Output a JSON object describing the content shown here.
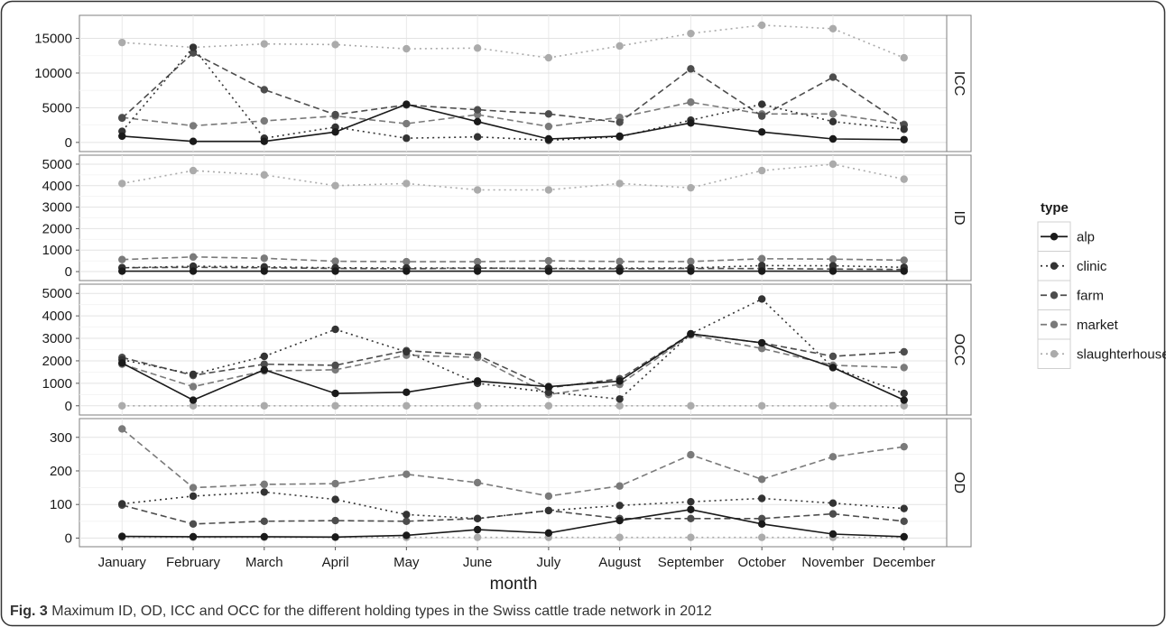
{
  "figure": {
    "caption_label": "Fig. 3",
    "caption_text": "Maximum ID, OD, ICC and OCC for the different holding types in the Swiss cattle trade network in 2012"
  },
  "chart_data": {
    "type": "line",
    "xlabel": "month",
    "x": [
      "January",
      "February",
      "March",
      "April",
      "May",
      "June",
      "July",
      "August",
      "September",
      "October",
      "November",
      "December"
    ],
    "legend": {
      "title": "type",
      "position": "right"
    },
    "grid": true,
    "series_styles": [
      {
        "name": "alp",
        "color": "#1a1a1a",
        "dash": "solid"
      },
      {
        "name": "clinic",
        "color": "#333333",
        "dash": "dotted"
      },
      {
        "name": "farm",
        "color": "#4d4d4d",
        "dash": "dashed"
      },
      {
        "name": "market",
        "color": "#7a7a7a",
        "dash": "dashed"
      },
      {
        "name": "slaughterhouse",
        "color": "#ababab",
        "dash": "dotted"
      }
    ],
    "panels": [
      {
        "label": "ICC",
        "ylim": [
          -800,
          17800
        ],
        "yticks": [
          0,
          5000,
          10000,
          15000
        ],
        "series": [
          {
            "name": "alp",
            "values": [
              900,
              150,
              150,
              1500,
              5500,
              3000,
              500,
              900,
              2800,
              1500,
              500,
              400
            ]
          },
          {
            "name": "clinic",
            "values": [
              1600,
              13700,
              600,
              2200,
              600,
              800,
              300,
              800,
              3200,
              5500,
              3000,
              1900
            ]
          },
          {
            "name": "farm",
            "values": [
              3500,
              12900,
              7600,
              4000,
              5400,
              4700,
              4100,
              2900,
              10600,
              3800,
              9400,
              2500
            ]
          },
          {
            "name": "market",
            "values": [
              3600,
              2400,
              3100,
              3800,
              2700,
              4000,
              2300,
              3600,
              5800,
              4100,
              4100,
              2600
            ]
          },
          {
            "name": "slaughterhouse",
            "values": [
              14400,
              13700,
              14200,
              14100,
              13500,
              13600,
              12200,
              13900,
              15700,
              16900,
              16400,
              12200
            ]
          }
        ]
      },
      {
        "label": "ID",
        "ylim": [
          -250,
          5250
        ],
        "yticks": [
          0,
          1000,
          2000,
          3000,
          4000,
          5000
        ],
        "series": [
          {
            "name": "alp",
            "values": [
              20,
              20,
              20,
              20,
              20,
              20,
              20,
              20,
              20,
              20,
              20,
              20
            ]
          },
          {
            "name": "clinic",
            "values": [
              180,
              250,
              220,
              180,
              170,
              170,
              150,
              160,
              170,
              280,
              270,
              200
            ]
          },
          {
            "name": "farm",
            "values": [
              180,
              200,
              180,
              150,
              130,
              160,
              140,
              130,
              150,
              140,
              120,
              100
            ]
          },
          {
            "name": "market",
            "values": [
              560,
              680,
              620,
              480,
              460,
              460,
              500,
              470,
              470,
              600,
              580,
              530
            ]
          },
          {
            "name": "slaughterhouse",
            "values": [
              4100,
              4700,
              4500,
              4000,
              4100,
              3800,
              3800,
              4100,
              3900,
              4700,
              5000,
              4300
            ]
          }
        ]
      },
      {
        "label": "OCC",
        "ylim": [
          -250,
          5250
        ],
        "yticks": [
          0,
          1000,
          2000,
          3000,
          4000,
          5000
        ],
        "series": [
          {
            "name": "alp",
            "values": [
              1900,
              250,
              1600,
              550,
              600,
              1100,
              850,
              1100,
              3200,
              2800,
              1700,
              250
            ]
          },
          {
            "name": "clinic",
            "values": [
              2050,
              1400,
              2200,
              3400,
              2400,
              1000,
              600,
              300,
              3200,
              4750,
              1700,
              550
            ]
          },
          {
            "name": "farm",
            "values": [
              2150,
              1350,
              1850,
              1800,
              2450,
              2250,
              800,
              1200,
              3200,
              2800,
              2200,
              2400
            ]
          },
          {
            "name": "market",
            "values": [
              1850,
              850,
              1550,
              1600,
              2250,
              2150,
              500,
              950,
              3150,
              2550,
              1800,
              1700
            ]
          },
          {
            "name": "slaughterhouse",
            "values": [
              0,
              0,
              0,
              0,
              0,
              0,
              0,
              0,
              0,
              0,
              0,
              0
            ]
          }
        ]
      },
      {
        "label": "OD",
        "ylim": [
          -15,
          345
        ],
        "yticks": [
          0,
          100,
          200,
          300
        ],
        "series": [
          {
            "name": "alp",
            "values": [
              5,
              4,
              4,
              3,
              8,
              25,
              15,
              52,
              85,
              42,
              12,
              4
            ]
          },
          {
            "name": "clinic",
            "values": [
              102,
              125,
              137,
              115,
              70,
              58,
              82,
              97,
              108,
              118,
              104,
              88
            ]
          },
          {
            "name": "farm",
            "values": [
              98,
              42,
              50,
              52,
              50,
              58,
              82,
              58,
              58,
              58,
              72,
              50
            ]
          },
          {
            "name": "market",
            "values": [
              325,
              150,
              160,
              162,
              190,
              165,
              125,
              155,
              248,
              175,
              242,
              272
            ]
          },
          {
            "name": "slaughterhouse",
            "values": [
              2,
              2,
              2,
              2,
              2,
              2,
              2,
              2,
              2,
              2,
              2,
              2
            ]
          }
        ]
      }
    ]
  }
}
